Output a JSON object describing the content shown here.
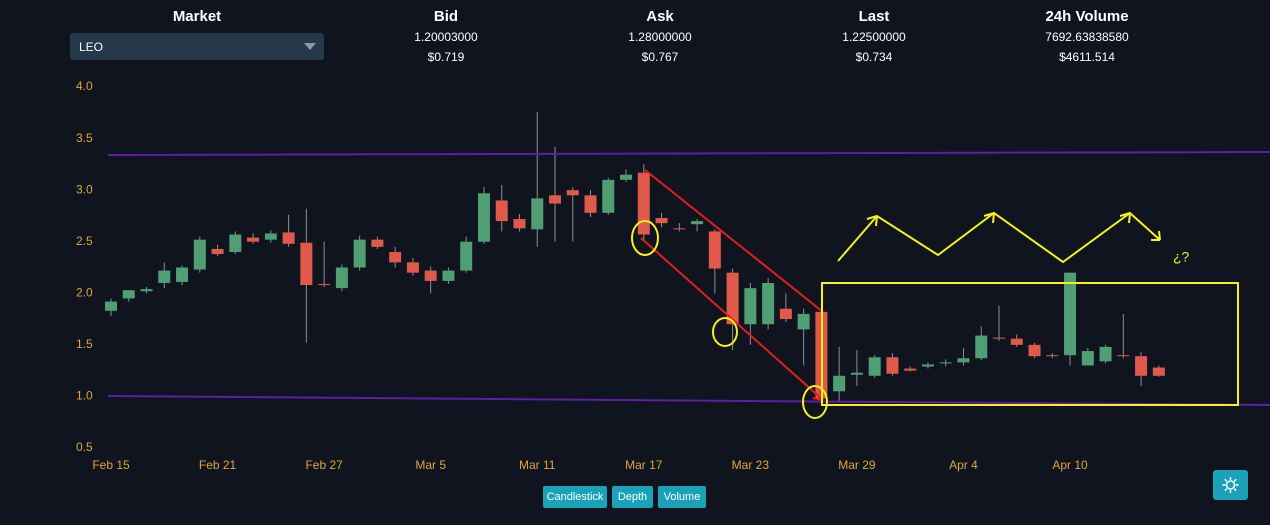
{
  "header": {
    "market": {
      "label": "Market",
      "value": "LEO"
    },
    "bid": {
      "label": "Bid",
      "value": "1.20003000",
      "usd": "$0.719"
    },
    "ask": {
      "label": "Ask",
      "value": "1.28000000",
      "usd": "$0.767"
    },
    "last": {
      "label": "Last",
      "value": "1.22500000",
      "usd": "$0.734"
    },
    "volume": {
      "label": "24h Volume",
      "value": "7692.63838580",
      "usd": "$4611.514"
    }
  },
  "chart_data": {
    "type": "candlestick",
    "categories": [
      "Feb 15",
      "Feb 16",
      "Feb 17",
      "Feb 18",
      "Feb 19",
      "Feb 20",
      "Feb 21",
      "Feb 22",
      "Feb 23",
      "Feb 24",
      "Feb 25",
      "Feb 26",
      "Feb 27",
      "Feb 28",
      "Mar 1",
      "Mar 2",
      "Mar 3",
      "Mar 4",
      "Mar 5",
      "Mar 6",
      "Mar 7",
      "Mar 8",
      "Mar 9",
      "Mar 10",
      "Mar 11",
      "Mar 12",
      "Mar 13",
      "Mar 14",
      "Mar 15",
      "Mar 16",
      "Mar 17",
      "Mar 18",
      "Mar 19",
      "Mar 20",
      "Mar 21",
      "Mar 22",
      "Mar 23",
      "Mar 24",
      "Mar 25",
      "Mar 26",
      "Mar 27",
      "Mar 28",
      "Mar 29",
      "Mar 30",
      "Mar 31",
      "Apr 1",
      "Apr 2",
      "Apr 3",
      "Apr 4",
      "Apr 5",
      "Apr 6",
      "Apr 7",
      "Apr 8",
      "Apr 9",
      "Apr 10",
      "Apr 11",
      "Apr 12",
      "Apr 13",
      "Apr 14",
      "Apr 15"
    ],
    "open": [
      1.83,
      1.95,
      2.02,
      2.1,
      2.11,
      2.23,
      2.43,
      2.4,
      2.54,
      2.52,
      2.59,
      2.49,
      2.09,
      2.05,
      2.25,
      2.52,
      2.4,
      2.3,
      2.22,
      2.12,
      2.22,
      2.5,
      2.9,
      2.72,
      2.62,
      2.95,
      3.0,
      2.95,
      2.78,
      3.1,
      3.17,
      2.73,
      2.63,
      2.67,
      2.6,
      2.2,
      1.7,
      1.7,
      1.85,
      1.65,
      1.82,
      1.05,
      1.21,
      1.2,
      1.38,
      1.27,
      1.29,
      1.32,
      1.33,
      1.37,
      1.57,
      1.56,
      1.5,
      1.4,
      1.4,
      1.3,
      1.34,
      1.4,
      1.39,
      1.28
    ],
    "high": [
      1.95,
      2.03,
      2.06,
      2.3,
      2.27,
      2.55,
      2.47,
      2.6,
      2.58,
      2.61,
      2.76,
      2.82,
      2.5,
      2.28,
      2.56,
      2.55,
      2.45,
      2.34,
      2.26,
      2.25,
      2.55,
      3.03,
      3.05,
      2.77,
      3.76,
      3.42,
      3.03,
      3.0,
      3.12,
      3.2,
      3.25,
      2.78,
      2.68,
      2.72,
      2.62,
      2.24,
      2.1,
      2.15,
      2.0,
      1.85,
      1.83,
      1.48,
      1.45,
      1.4,
      1.42,
      1.29,
      1.33,
      1.36,
      1.47,
      1.68,
      1.88,
      1.6,
      1.52,
      1.42,
      2.2,
      1.47,
      1.5,
      1.8,
      1.43,
      1.3
    ],
    "low": [
      1.78,
      1.92,
      2.0,
      2.05,
      2.08,
      2.2,
      2.36,
      2.38,
      2.48,
      2.49,
      2.45,
      1.52,
      2.06,
      2.02,
      2.22,
      2.43,
      2.25,
      2.17,
      2.0,
      2.09,
      2.2,
      2.48,
      2.6,
      2.6,
      2.45,
      2.5,
      2.5,
      2.74,
      2.76,
      3.08,
      2.52,
      2.64,
      2.6,
      2.6,
      2.0,
      1.45,
      1.5,
      1.65,
      1.72,
      1.3,
      0.98,
      0.95,
      1.1,
      1.18,
      1.2,
      1.24,
      1.27,
      1.29,
      1.3,
      1.35,
      1.54,
      1.48,
      1.37,
      1.37,
      1.3,
      1.3,
      1.32,
      1.37,
      1.1,
      1.19
    ],
    "close": [
      1.92,
      2.03,
      2.04,
      2.22,
      2.25,
      2.52,
      2.38,
      2.57,
      2.5,
      2.58,
      2.48,
      2.08,
      2.08,
      2.25,
      2.52,
      2.45,
      2.3,
      2.2,
      2.12,
      2.22,
      2.5,
      2.97,
      2.7,
      2.63,
      2.92,
      2.87,
      2.95,
      2.78,
      3.1,
      3.15,
      2.57,
      2.68,
      2.62,
      2.7,
      2.24,
      1.7,
      2.05,
      2.1,
      1.75,
      1.8,
      0.98,
      1.2,
      1.23,
      1.38,
      1.22,
      1.25,
      1.31,
      1.33,
      1.37,
      1.59,
      1.56,
      1.5,
      1.39,
      1.39,
      2.2,
      1.44,
      1.48,
      1.39,
      1.2,
      1.2
    ],
    "up_color": "#4f9e74",
    "down_color": "#df5a4a",
    "ylim": [
      0.43,
      4.07
    ],
    "yticks": [
      0.5,
      {
        "value": 1,
        "label": "1.0"
      },
      1.5,
      {
        "value": 2,
        "label": "2.0"
      },
      2.5,
      {
        "value": 3,
        "label": "3.0"
      },
      3.5,
      {
        "value": 4,
        "label": "4.0"
      }
    ],
    "xticks": [
      "Feb 15",
      "Feb 21",
      "Feb 27",
      "Mar 5",
      "Mar 11",
      "Mar 17",
      "Mar 23",
      "Mar 29",
      "Apr 4",
      "Apr 10"
    ],
    "annotation": "¿?"
  },
  "buttons": [
    "Candlestick",
    "Depth",
    "Volume"
  ]
}
